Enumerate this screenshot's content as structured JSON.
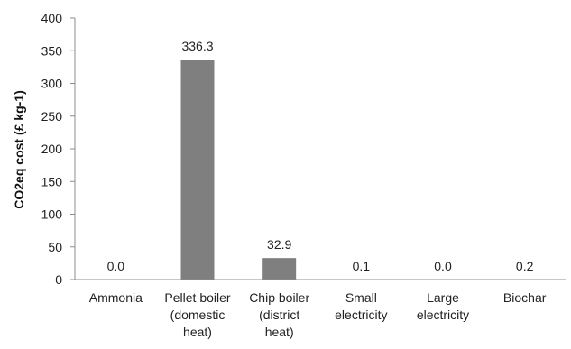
{
  "chart_data": {
    "type": "bar",
    "title": "",
    "xlabel": "",
    "ylabel": "CO2eq cost (£ kg-1)",
    "ylim": [
      0,
      400
    ],
    "yticks": [
      0,
      50,
      100,
      150,
      200,
      250,
      300,
      350,
      400
    ],
    "grid": false,
    "legend": "none",
    "bar_color": "#7f7f80",
    "categories": [
      [
        "Ammonia"
      ],
      [
        "Pellet boiler",
        "(domestic",
        "heat)"
      ],
      [
        "Chip boiler",
        "(district",
        "heat)"
      ],
      [
        "Small",
        "electricity"
      ],
      [
        "Large",
        "electricity"
      ],
      [
        "Biochar"
      ]
    ],
    "values": [
      0.0,
      336.3,
      32.9,
      0.1,
      0.0,
      0.2
    ],
    "data_labels": [
      "0.0",
      "336.3",
      "32.9",
      "0.1",
      "0.0",
      "0.2"
    ]
  }
}
